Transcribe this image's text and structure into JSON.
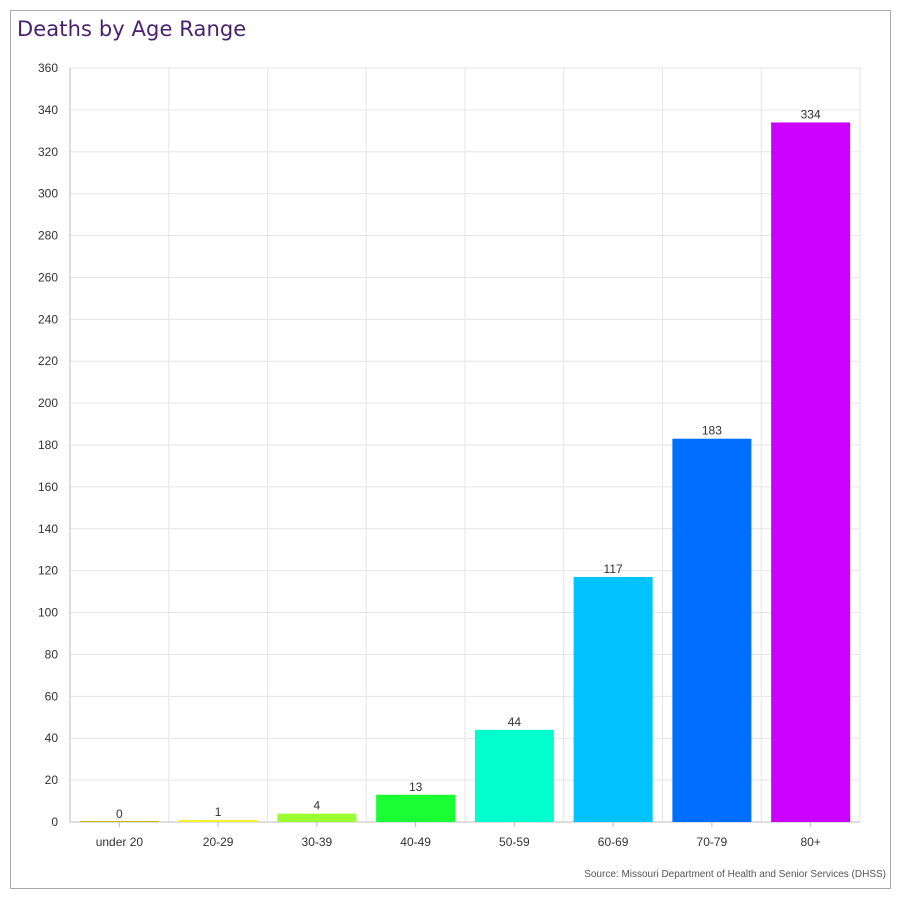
{
  "chart_data": {
    "type": "bar",
    "title": "Deaths by Age Range",
    "xlabel": "",
    "ylabel": "",
    "categories": [
      "under 20",
      "20-29",
      "30-39",
      "40-49",
      "50-59",
      "60-69",
      "70-79",
      "80+"
    ],
    "values": [
      0,
      1,
      4,
      13,
      44,
      117,
      183,
      334
    ],
    "colors": [
      "#d4b800",
      "#f2f233",
      "#99ff33",
      "#1aff33",
      "#00ffcc",
      "#00c3ff",
      "#006fff",
      "#cc00ff"
    ],
    "ylim": [
      0,
      360
    ],
    "yticks": [
      0,
      20,
      40,
      60,
      80,
      100,
      120,
      140,
      160,
      180,
      200,
      220,
      240,
      260,
      280,
      300,
      320,
      340,
      360
    ],
    "grid": true,
    "source": "Source: Missouri Department of Health and Senior Services (DHSS)"
  }
}
